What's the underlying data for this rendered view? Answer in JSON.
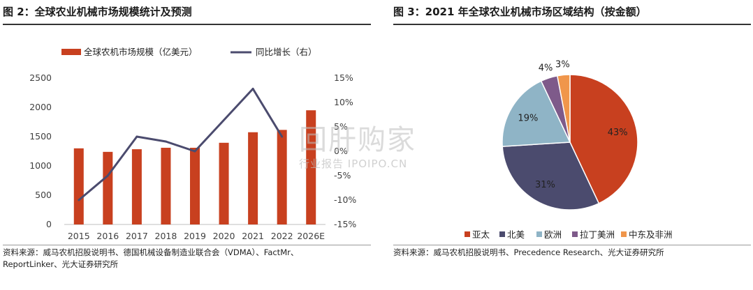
{
  "figures": {
    "left_title": "图 2：全球农业机械市场规模统计及预测",
    "right_title": "图 3：2021 年全球农业机械市场区域结构（按金额）",
    "left_source_line1": "资料来源：威马农机招股说明书、德国机械设备制造业联合会（VDMA）、FactMr、",
    "left_source_line2": "ReportLinker、光大证券研究所",
    "right_source": "资料来源：威马农机招股说明书、Precedence Research、光大证券研究所"
  },
  "watermark": {
    "main": "回肝购家",
    "sub": "行业报告 IPOIPO.CN"
  },
  "colors": {
    "bar": "#C8401F",
    "line": "#4B4B6E",
    "axis": "#bfbfbf",
    "text": "#404040"
  },
  "chart_data": [
    {
      "type": "bar",
      "categories": [
        "2015",
        "2016",
        "2017",
        "2018",
        "2019",
        "2020",
        "2021",
        "2022",
        "2026E"
      ],
      "series": [
        {
          "name": "全球农机市场规模（亿美元）",
          "type": "bar",
          "axis": "left",
          "values": [
            1300,
            1240,
            1285,
            1310,
            1310,
            1395,
            1575,
            1615,
            1950
          ]
        },
        {
          "name": "同比增长（右）",
          "type": "line",
          "axis": "right",
          "values": [
            -10.0,
            -5.0,
            3.0,
            2.0,
            0.0,
            null,
            12.8,
            3.0,
            null
          ]
        }
      ],
      "ylim": [
        0,
        2500
      ],
      "yticks": [
        0,
        500,
        1000,
        1500,
        2000,
        2500
      ],
      "y2lim": [
        -15,
        15
      ],
      "y2ticks": [
        "-15%",
        "-10%",
        "-5%",
        "0%",
        "5%",
        "10%",
        "15%"
      ],
      "legend": "top",
      "grid": false
    },
    {
      "type": "pie",
      "labels": [
        "亚太",
        "北美",
        "欧洲",
        "拉丁美洲",
        "中东及非洲"
      ],
      "values": [
        43,
        31,
        19,
        4,
        3
      ],
      "value_labels": [
        "43%",
        "31%",
        "19%",
        "4%",
        "3%"
      ],
      "colors": [
        "#C8401F",
        "#4B4B6E",
        "#8FB4C6",
        "#7E5A8A",
        "#F0964B"
      ],
      "legend": "bottom"
    }
  ]
}
